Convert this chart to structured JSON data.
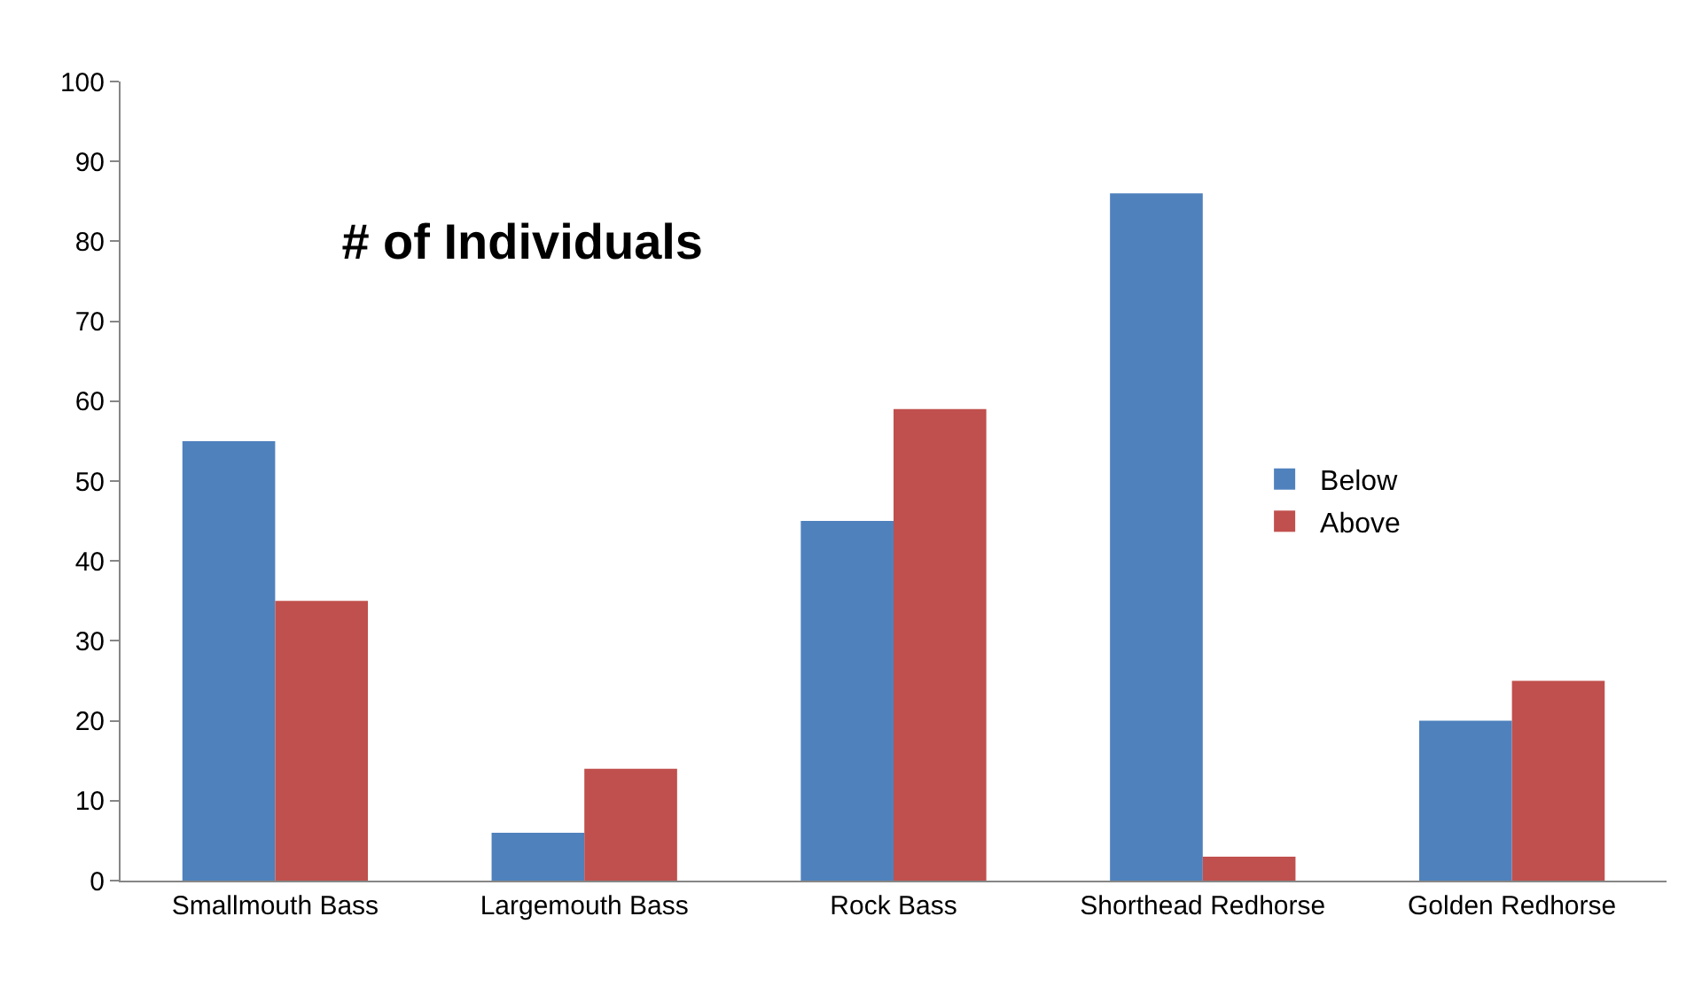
{
  "chart_data": {
    "type": "bar",
    "title": "# of Individuals",
    "categories": [
      "Smallmouth Bass",
      "Largemouth Bass",
      "Rock Bass",
      "Shorthead Redhorse",
      "Golden Redhorse"
    ],
    "series": [
      {
        "name": "Below",
        "color": "#4f81bd",
        "values": [
          55,
          6,
          45,
          86,
          20
        ]
      },
      {
        "name": "Above",
        "color": "#c0504d",
        "values": [
          35,
          14,
          59,
          3,
          25
        ]
      }
    ],
    "ylim": [
      0,
      100
    ],
    "yticks": [
      0,
      10,
      20,
      30,
      40,
      50,
      60,
      70,
      80,
      90,
      100
    ],
    "legend": "right"
  }
}
